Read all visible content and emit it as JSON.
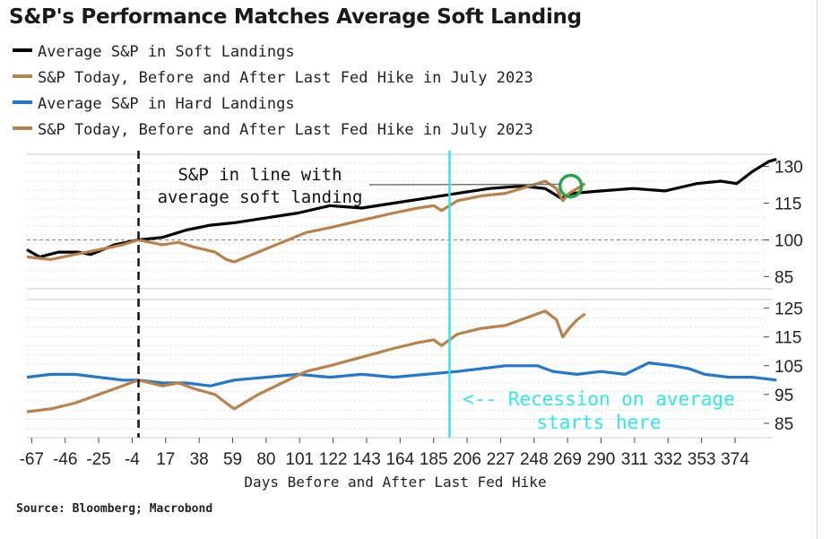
{
  "title": "S&P's Performance Matches Average Soft Landing",
  "source": "Source: Bloomberg; Macrobond",
  "colors": {
    "soft": "#000000",
    "today": "#b8824a",
    "hard": "#2478cc",
    "recession_line": "#2ee6f0",
    "annotation_circle": "#2aa34a"
  },
  "legend": [
    {
      "label": "Average S&P in Soft Landings",
      "color": "#000000"
    },
    {
      "label": "S&P Today, Before and After Last Fed Hike in July 2023",
      "color": "#b8824a"
    },
    {
      "label": "Average S&P in Hard Landings",
      "color": "#2478cc"
    },
    {
      "label": "S&P Today, Before and After Last Fed Hike in July 2023",
      "color": "#b8824a"
    }
  ],
  "chart_data": {
    "type": "line",
    "xlabel": "Days Before and After Last Fed Hike",
    "x_ticks": [
      "-67",
      "-46",
      "-25",
      "-4",
      "17",
      "38",
      "59",
      "80",
      "101",
      "122",
      "143",
      "164",
      "185",
      "206",
      "227",
      "248",
      "269",
      "290",
      "311",
      "332",
      "353",
      "374"
    ],
    "xlim": [
      -70,
      392
    ],
    "fed_hike_day": 0,
    "recession_start_day": 195,
    "panels": [
      {
        "name": "soft",
        "y_ticks": [
          130,
          115,
          100,
          85
        ],
        "ylim": [
          80,
          135
        ],
        "reference_y": 100,
        "annotation": {
          "line1": "S&P in line with",
          "line2": "average soft landing",
          "point": {
            "day": 271,
            "value": 122
          }
        },
        "series": [
          {
            "name": "Average S&P in Soft Landings",
            "color": "#000000",
            "points": [
              [
                -70,
                96
              ],
              [
                -62,
                93
              ],
              [
                -50,
                95
              ],
              [
                -38,
                95
              ],
              [
                -30,
                94
              ],
              [
                -15,
                98
              ],
              [
                0,
                100
              ],
              [
                15,
                101
              ],
              [
                30,
                104
              ],
              [
                45,
                106
              ],
              [
                60,
                107
              ],
              [
                80,
                109
              ],
              [
                100,
                111
              ],
              [
                120,
                114
              ],
              [
                140,
                113
              ],
              [
                160,
                115
              ],
              [
                180,
                117
              ],
              [
                200,
                119
              ],
              [
                220,
                121
              ],
              [
                240,
                122
              ],
              [
                255,
                121
              ],
              [
                265,
                117
              ],
              [
                272,
                119
              ],
              [
                290,
                120
              ],
              [
                310,
                121
              ],
              [
                330,
                120
              ],
              [
                350,
                123
              ],
              [
                365,
                124
              ],
              [
                375,
                123
              ],
              [
                385,
                128
              ],
              [
                395,
                132
              ],
              [
                400,
                133
              ]
            ]
          },
          {
            "name": "S&P Today, Before and After Last Fed Hike in July 2023",
            "color": "#b8824a",
            "points": [
              [
                -70,
                93
              ],
              [
                -55,
                92
              ],
              [
                -40,
                94
              ],
              [
                -25,
                96
              ],
              [
                -10,
                98
              ],
              [
                0,
                100
              ],
              [
                15,
                98
              ],
              [
                25,
                99
              ],
              [
                35,
                97
              ],
              [
                48,
                95
              ],
              [
                55,
                92
              ],
              [
                60,
                91
              ],
              [
                75,
                95
              ],
              [
                90,
                99
              ],
              [
                105,
                103
              ],
              [
                120,
                105
              ],
              [
                140,
                108
              ],
              [
                160,
                111
              ],
              [
                175,
                113
              ],
              [
                185,
                114
              ],
              [
                190,
                112
              ],
              [
                200,
                116
              ],
              [
                215,
                118
              ],
              [
                230,
                119
              ],
              [
                245,
                122
              ],
              [
                255,
                124
              ],
              [
                262,
                121
              ],
              [
                266,
                116
              ],
              [
                270,
                119
              ],
              [
                275,
                121
              ],
              [
                280,
                123
              ]
            ]
          }
        ]
      },
      {
        "name": "hard",
        "y_ticks": [
          125,
          115,
          105,
          95,
          85
        ],
        "ylim": [
          80,
          128
        ],
        "annotation": {
          "line1": "<-- Recession on average",
          "line2": "starts here"
        },
        "series": [
          {
            "name": "Average S&P in Hard Landings",
            "color": "#2478cc",
            "points": [
              [
                -70,
                101
              ],
              [
                -55,
                102
              ],
              [
                -40,
                102
              ],
              [
                -25,
                101
              ],
              [
                -10,
                100
              ],
              [
                0,
                100
              ],
              [
                15,
                99
              ],
              [
                30,
                99
              ],
              [
                45,
                98
              ],
              [
                60,
                100
              ],
              [
                80,
                101
              ],
              [
                100,
                102
              ],
              [
                120,
                101
              ],
              [
                140,
                102
              ],
              [
                160,
                101
              ],
              [
                180,
                102
              ],
              [
                200,
                103
              ],
              [
                215,
                104
              ],
              [
                230,
                105
              ],
              [
                250,
                105
              ],
              [
                260,
                103
              ],
              [
                275,
                102
              ],
              [
                290,
                103
              ],
              [
                305,
                102
              ],
              [
                320,
                106
              ],
              [
                335,
                105
              ],
              [
                345,
                104
              ],
              [
                355,
                102
              ],
              [
                370,
                101
              ],
              [
                385,
                101
              ],
              [
                400,
                100
              ]
            ]
          },
          {
            "name": "S&P Today, Before and After Last Fed Hike in July 2023",
            "color": "#b8824a",
            "points": [
              [
                -70,
                89
              ],
              [
                -55,
                90
              ],
              [
                -40,
                92
              ],
              [
                -25,
                95
              ],
              [
                -10,
                98
              ],
              [
                0,
                100
              ],
              [
                15,
                98
              ],
              [
                25,
                99
              ],
              [
                35,
                97
              ],
              [
                48,
                95
              ],
              [
                55,
                92
              ],
              [
                60,
                90
              ],
              [
                75,
                95
              ],
              [
                90,
                99
              ],
              [
                105,
                103
              ],
              [
                120,
                105
              ],
              [
                140,
                108
              ],
              [
                160,
                111
              ],
              [
                175,
                113
              ],
              [
                185,
                114
              ],
              [
                190,
                112
              ],
              [
                200,
                116
              ],
              [
                215,
                118
              ],
              [
                230,
                119
              ],
              [
                245,
                122
              ],
              [
                255,
                124
              ],
              [
                262,
                121
              ],
              [
                266,
                115
              ],
              [
                270,
                118
              ],
              [
                275,
                121
              ],
              [
                280,
                123
              ]
            ]
          }
        ]
      }
    ]
  }
}
